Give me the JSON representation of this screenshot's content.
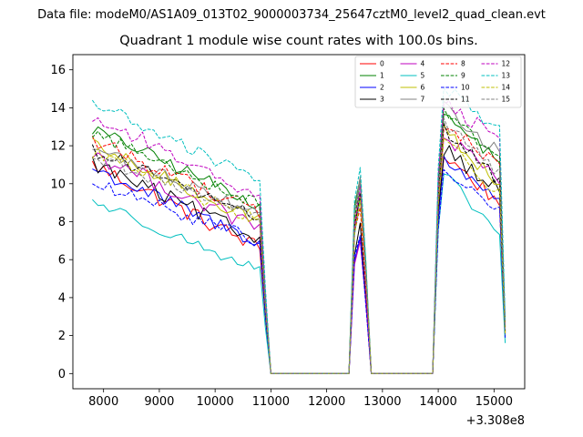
{
  "figure": {
    "suptitle": "Data file: modeM0/AS1A09_013T02_9000003734_25647cztM0_level2_quad_clean.evt"
  },
  "chart_data": {
    "type": "line",
    "title": "Quadrant 1 module wise count rates with 100.0s bins.",
    "xlabel": "",
    "ylabel": "",
    "x_offset_label": "+3.308e8",
    "xlim": [
      7450,
      15550
    ],
    "ylim": [
      -0.8,
      16.8
    ],
    "xticks": [
      8000,
      9000,
      10000,
      11000,
      12000,
      13000,
      14000,
      15000
    ],
    "yticks": [
      0,
      2,
      4,
      6,
      8,
      10,
      12,
      14,
      16
    ],
    "legend_position": "top-right",
    "legend_columns": 4,
    "series": [
      {
        "name": "0",
        "color": "#ff0000",
        "dashed": false,
        "seg1": [
          11.0,
          6.6
        ],
        "noise": 0.45,
        "seg2": 9.4,
        "seg3": [
          11.5,
          9.0
        ]
      },
      {
        "name": "1",
        "color": "#008000",
        "dashed": false,
        "seg1": [
          12.9,
          8.9
        ],
        "noise": 0.35,
        "seg2": 10.4,
        "seg3": [
          13.6,
          11.2
        ]
      },
      {
        "name": "2",
        "color": "#0000ff",
        "dashed": false,
        "seg1": [
          10.8,
          6.9
        ],
        "noise": 0.4,
        "seg2": 7.2,
        "seg3": [
          11.2,
          9.3
        ]
      },
      {
        "name": "3",
        "color": "#000000",
        "dashed": false,
        "seg1": [
          11.1,
          7.0
        ],
        "noise": 0.45,
        "seg2": 7.9,
        "seg3": [
          11.9,
          9.6
        ]
      },
      {
        "name": "4",
        "color": "#bf00bf",
        "dashed": false,
        "seg1": [
          11.6,
          7.6
        ],
        "noise": 0.45,
        "seg2": 6.9,
        "seg3": [
          12.6,
          10.0
        ]
      },
      {
        "name": "5",
        "color": "#00bfbf",
        "dashed": false,
        "seg1": [
          9.1,
          5.4
        ],
        "noise": 0.3,
        "seg2": 9.1,
        "seg3": [
          10.5,
          7.3
        ]
      },
      {
        "name": "6",
        "color": "#bfbf00",
        "dashed": false,
        "seg1": [
          12.0,
          8.0
        ],
        "noise": 0.4,
        "seg2": 9.6,
        "seg3": [
          12.9,
          9.9
        ]
      },
      {
        "name": "7",
        "color": "#808080",
        "dashed": false,
        "seg1": [
          11.9,
          8.5
        ],
        "noise": 0.35,
        "seg2": 10.5,
        "seg3": [
          14.0,
          11.6
        ]
      },
      {
        "name": "8",
        "color": "#ff0000",
        "dashed": true,
        "seg1": [
          12.3,
          8.5
        ],
        "noise": 0.45,
        "seg2": 8.8,
        "seg3": [
          13.1,
          10.9
        ]
      },
      {
        "name": "9",
        "color": "#008000",
        "dashed": true,
        "seg1": [
          12.7,
          8.9
        ],
        "noise": 0.35,
        "seg2": 10.0,
        "seg3": [
          14.0,
          11.3
        ]
      },
      {
        "name": "10",
        "color": "#0000ff",
        "dashed": true,
        "seg1": [
          10.0,
          7.0
        ],
        "noise": 0.35,
        "seg2": 7.2,
        "seg3": [
          10.6,
          8.6
        ]
      },
      {
        "name": "11",
        "color": "#000000",
        "dashed": true,
        "seg1": [
          11.8,
          8.2
        ],
        "noise": 0.35,
        "seg2": 9.4,
        "seg3": [
          12.9,
          10.1
        ]
      },
      {
        "name": "12",
        "color": "#bf00bf",
        "dashed": true,
        "seg1": [
          13.5,
          9.4
        ],
        "noise": 0.45,
        "seg2": 9.7,
        "seg3": [
          14.5,
          12.1
        ]
      },
      {
        "name": "13",
        "color": "#00bfbf",
        "dashed": true,
        "seg1": [
          14.3,
          10.1
        ],
        "noise": 0.35,
        "seg2": 11.0,
        "seg3": [
          15.1,
          12.8
        ]
      },
      {
        "name": "14",
        "color": "#bfbf00",
        "dashed": true,
        "seg1": [
          11.7,
          8.0
        ],
        "noise": 0.4,
        "seg2": 9.2,
        "seg3": [
          12.3,
          9.4
        ]
      },
      {
        "name": "15",
        "color": "#808080",
        "dashed": true,
        "seg1": [
          11.4,
          8.3
        ],
        "noise": 0.35,
        "seg2": 10.1,
        "seg3": [
          13.2,
          10.5
        ]
      }
    ]
  }
}
